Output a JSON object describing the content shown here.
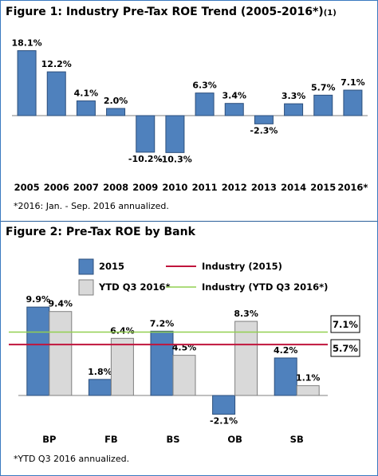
{
  "figure1": {
    "title": "Figure 1: Industry Pre-Tax ROE Trend (2005-2016*)",
    "title_note": "(1)",
    "footnote": "*2016: Jan. - Sep. 2016 annualized."
  },
  "figure2": {
    "title": "Figure 2: Pre-Tax ROE by Bank",
    "footnote": "*YTD Q3 2016 annualized."
  },
  "colors": {
    "blue_bar": "#4f81bd",
    "blue_edge": "#2c4f7c",
    "grey_bar": "#d9d9d9",
    "grey_edge": "#7f7f7f",
    "industry_2015": "#c0143c",
    "industry_ytd": "#92d050",
    "border": "#3a7ac0"
  },
  "chart_data": [
    {
      "type": "bar",
      "title": "Figure 1: Industry Pre-Tax ROE Trend (2005-2016*)",
      "categories": [
        "2005",
        "2006",
        "2007",
        "2008",
        "2009",
        "2010",
        "2011",
        "2012",
        "2013",
        "2014",
        "2015",
        "2016*"
      ],
      "values": [
        18.1,
        12.2,
        4.1,
        2.0,
        -10.2,
        -10.3,
        6.3,
        3.4,
        -2.3,
        3.3,
        5.7,
        7.1
      ],
      "data_labels": [
        "18.1%",
        "12.2%",
        "4.1%",
        "2.0%",
        "-10.2%",
        "-10.3%",
        "6.3%",
        "3.4%",
        "-2.3%",
        "3.3%",
        "5.7%",
        "7.1%"
      ],
      "ylim": [
        -10.3,
        18.1
      ],
      "grid": false,
      "xlabel": "",
      "ylabel": ""
    },
    {
      "type": "bar",
      "title": "Figure 2: Pre-Tax ROE by Bank",
      "categories": [
        "BP",
        "FB",
        "BS",
        "OB",
        "SB"
      ],
      "series": [
        {
          "name": "2015",
          "values": [
            9.9,
            1.8,
            7.2,
            -2.1,
            4.2
          ],
          "data_labels": [
            "9.9%",
            "1.8%",
            "7.2%",
            "-2.1%",
            "4.2%"
          ]
        },
        {
          "name": "YTD Q3 2016*",
          "values": [
            9.4,
            6.4,
            4.5,
            8.3,
            1.1
          ],
          "data_labels": [
            "9.4%",
            "6.4%",
            "4.5%",
            "8.3%",
            "1.1%"
          ]
        }
      ],
      "reference_lines": [
        {
          "name": "Industry (2015)",
          "value": 5.7,
          "label": "5.7%"
        },
        {
          "name": "Industry (YTD Q3 2016*)",
          "value": 7.1,
          "label": "7.1%"
        }
      ],
      "legend_position": "top",
      "ylim": [
        -2.1,
        9.9
      ],
      "grid": false,
      "xlabel": "",
      "ylabel": ""
    }
  ]
}
